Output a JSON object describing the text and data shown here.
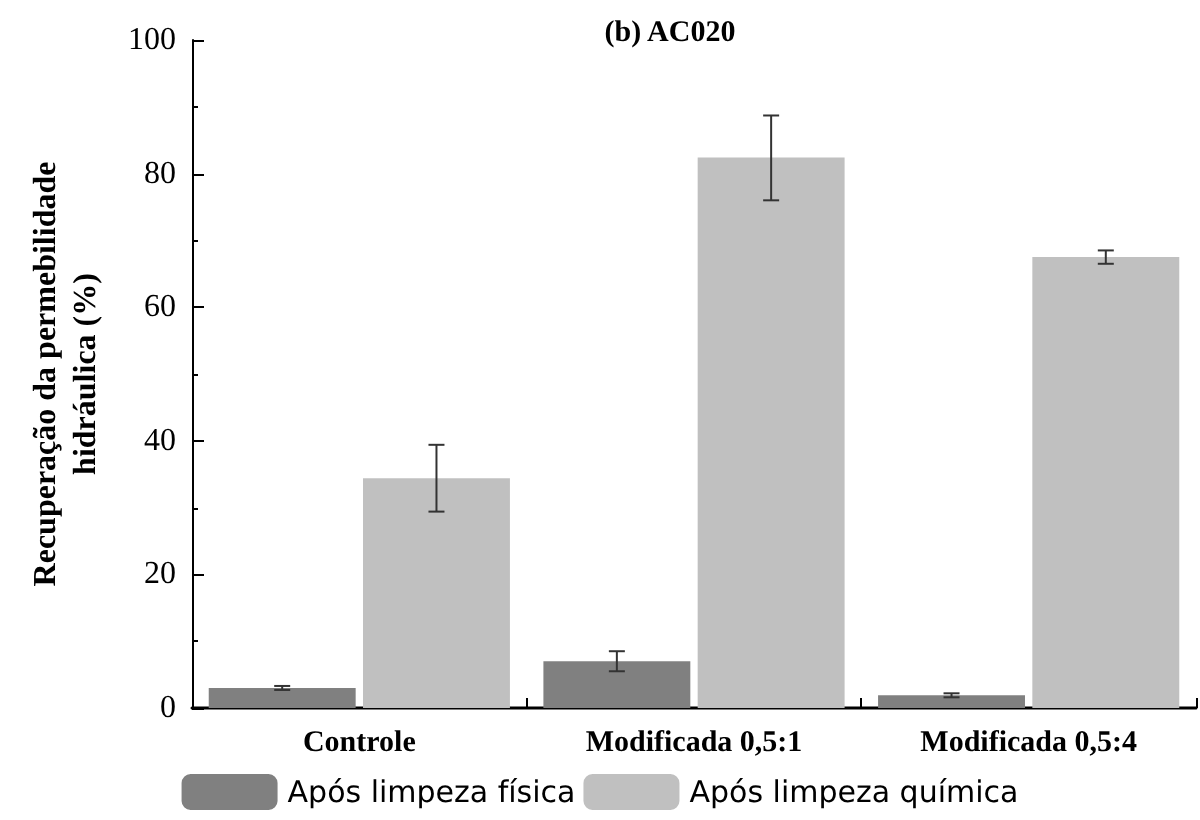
{
  "chart_data": {
    "type": "bar",
    "title": "(b) AC020",
    "ylabel": "Recuperação da permebilidade\nhidráulica (%)",
    "categories": [
      "Controle",
      "Modificada 0,5:1",
      "Modificada 0,5:4"
    ],
    "series": [
      {
        "name": "Após limpeza física",
        "color": "#808080",
        "values": [
          3.0,
          7.0,
          1.9
        ],
        "errors": [
          0.3,
          1.5,
          0.3
        ]
      },
      {
        "name": "Após limpeza química",
        "color": "#c0c0c0",
        "values": [
          34.4,
          82.4,
          67.5
        ],
        "errors": [
          5.0,
          [
            76.0,
            88.7
          ],
          1.0
        ]
      }
    ],
    "ylim": [
      0,
      100
    ],
    "yticks": [
      0,
      20,
      40,
      60,
      80,
      100
    ],
    "grid": false,
    "legend": "bottom"
  }
}
